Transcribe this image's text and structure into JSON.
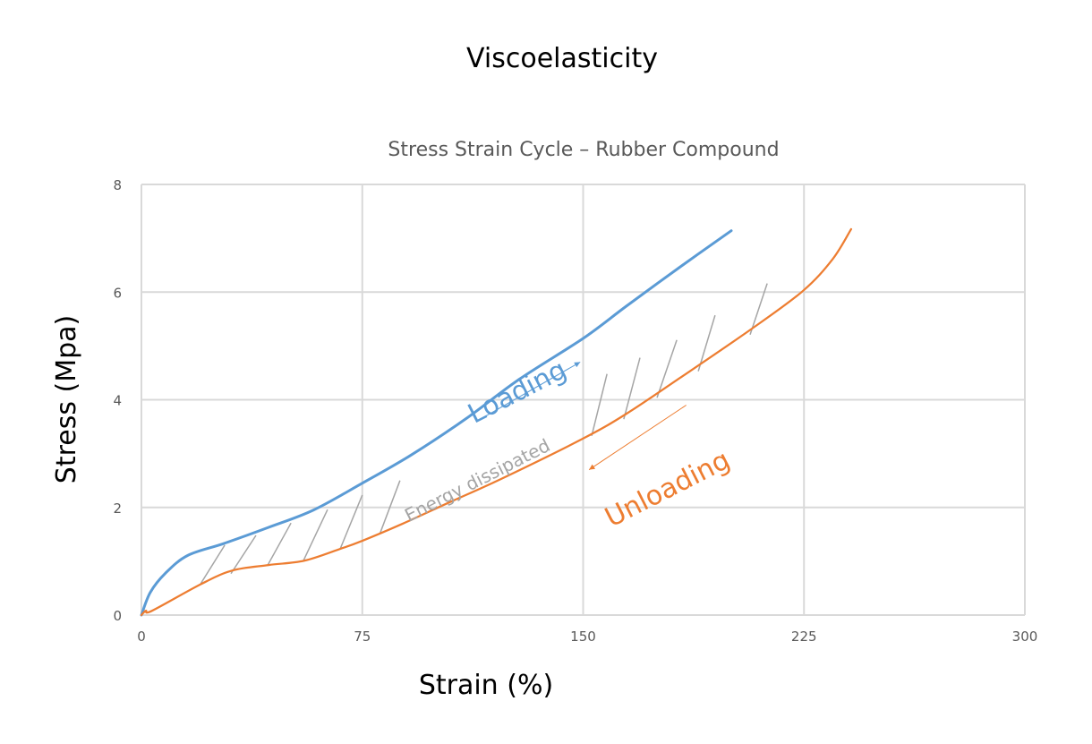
{
  "page_title": "Viscoelasticity",
  "chart_data": {
    "type": "line",
    "title": "Stress Strain Cycle – Rubber Compound",
    "xlabel": "Strain (%)",
    "ylabel": "Stress (Mpa)",
    "xlim": [
      0,
      300
    ],
    "ylim": [
      0,
      8
    ],
    "xticks": [
      0,
      75,
      150,
      225,
      300
    ],
    "yticks": [
      0,
      2,
      4,
      6,
      8
    ],
    "x_tick_labels": [
      "0",
      "75",
      "150",
      "225",
      "300"
    ],
    "y_tick_labels": [
      "0",
      "2",
      "4",
      "6",
      "8"
    ],
    "grid": true,
    "legend": "none",
    "series": [
      {
        "name": "Loading",
        "color": "#5b9bd5",
        "x": [
          0,
          3,
          8.2,
          15.8,
          28,
          43.2,
          58.4,
          75,
          91.8,
          110,
          128.3,
          150,
          164.7,
          183,
          200.3
        ],
        "y": [
          0,
          0.42,
          0.78,
          1.11,
          1.33,
          1.63,
          1.95,
          2.45,
          2.98,
          3.64,
          4.38,
          5.14,
          5.74,
          6.47,
          7.14
        ]
      },
      {
        "name": "Unloading",
        "color": "#ed7d31",
        "x": [
          0,
          1.5,
          3.6,
          20.4,
          31,
          43.2,
          55.3,
          67.5,
          75,
          88.8,
          104,
          122.2,
          150,
          164.7,
          183,
          207.3,
          224.6,
          234.7,
          241
        ],
        "y": [
          0,
          0.08,
          0.08,
          0.58,
          0.83,
          0.93,
          1.01,
          1.23,
          1.38,
          1.7,
          2.08,
          2.53,
          3.28,
          3.74,
          4.41,
          5.32,
          6.02,
          6.61,
          7.17
        ]
      }
    ],
    "hatch_color": "#a5a5a5",
    "hatch_lines": [
      [
        [
          20.1,
          0.58
        ],
        [
          28.3,
          1.3
        ]
      ],
      [
        [
          30.4,
          0.77
        ],
        [
          38.9,
          1.48
        ]
      ],
      [
        [
          42.9,
          0.93
        ],
        [
          50.8,
          1.71
        ]
      ],
      [
        [
          55.0,
          1.01
        ],
        [
          63.2,
          1.96
        ]
      ],
      [
        [
          67.5,
          1.23
        ],
        [
          75.0,
          2.23
        ]
      ],
      [
        [
          80.9,
          1.5
        ],
        [
          87.8,
          2.5
        ]
      ],
      [
        [
          152.9,
          3.33
        ],
        [
          158.1,
          4.48
        ]
      ],
      [
        [
          163.8,
          3.64
        ],
        [
          169.3,
          4.78
        ]
      ],
      [
        [
          175.1,
          4.04
        ],
        [
          181.8,
          5.11
        ]
      ],
      [
        [
          189.1,
          4.53
        ],
        [
          194.8,
          5.57
        ]
      ],
      [
        [
          206.7,
          5.21
        ],
        [
          212.5,
          6.16
        ]
      ]
    ],
    "arrows": [
      {
        "name": "loading-arrow",
        "color": "#5b9bd5",
        "from": [
          117,
          3.7
        ],
        "to": [
          149,
          4.7
        ]
      },
      {
        "name": "unloading-arrow",
        "color": "#ed7d31",
        "from": [
          185,
          3.9
        ],
        "to": [
          152,
          2.7
        ]
      }
    ],
    "annotations": [
      {
        "name": "loading-annotation",
        "text": "Loading",
        "x": 129,
        "y": 4.0,
        "color": "#5b9bd5"
      },
      {
        "name": "energy-dissipated-annotation",
        "text": "Energy dissipated",
        "x": 115,
        "y": 2.4,
        "color": "#a5a5a5"
      },
      {
        "name": "unloading-annotation",
        "text": "Unloading",
        "x": 180,
        "y": 2.2,
        "color": "#ed7d31"
      }
    ]
  }
}
